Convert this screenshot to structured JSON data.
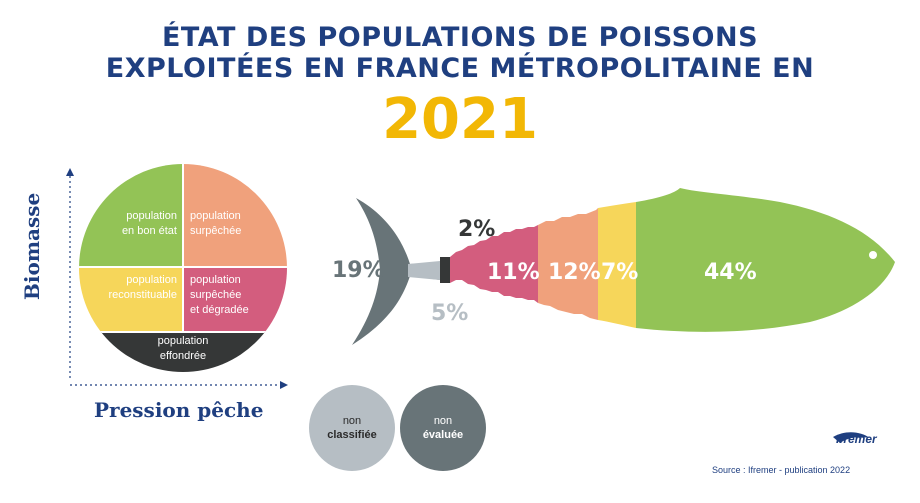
{
  "title_line1": "ÉTAT DES POPULATIONS DE POISSONS",
  "title_line2": "EXPLOITÉES EN FRANCE MÉTROPOLITAINE EN",
  "year": "2021",
  "axis_y_label": "Biomasse",
  "axis_x_label": "Pression pêche",
  "quadrants": {
    "bon_etat": [
      "population",
      "en bon état"
    ],
    "surpechee": [
      "population",
      "surpêchée"
    ],
    "reconstituable": [
      "population",
      "reconstituable"
    ],
    "degradee": [
      "population",
      "surpêchée",
      "et dégradée"
    ],
    "effondree": [
      "population",
      "effondrée"
    ]
  },
  "legend": {
    "non_classifiee": [
      "non",
      "classifiée"
    ],
    "non_evaluee": [
      "non",
      "évaluée"
    ]
  },
  "logo_text": "Ifremer",
  "source": "Source : Ifremer - publication 2022",
  "colors": {
    "title": "#1f3f80",
    "year": "#f2b705",
    "bon_etat": "#93c356",
    "surpechee": "#f0a17c",
    "reconstituable": "#f6d65a",
    "degradee": "#d35d7e",
    "effondree": "#353737",
    "non_classifiee": "#b6bec4",
    "non_evaluee": "#687478"
  },
  "chart_data": {
    "type": "bar",
    "categories": [
      "non évaluée",
      "non classifiée",
      "effondrée",
      "surpêchée et dégradée",
      "surpêchée",
      "reconstituable",
      "en bon état"
    ],
    "values": [
      19,
      5,
      2,
      11,
      12,
      7,
      44
    ],
    "labels": [
      "19%",
      "5%",
      "2%",
      "11%",
      "12%",
      "7%",
      "44%"
    ]
  }
}
